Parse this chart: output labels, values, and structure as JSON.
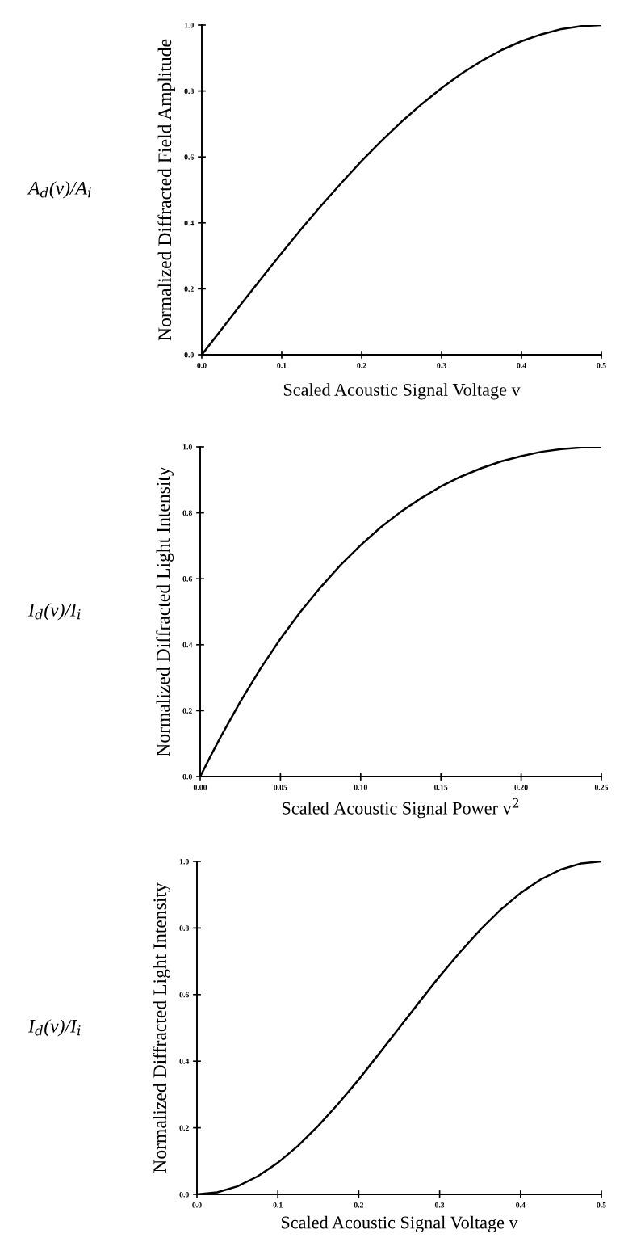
{
  "chart_data": [
    {
      "type": "line",
      "xlabel": "Scaled Acoustic Signal Voltage v",
      "ylabel": "Normalized Diffracted Field Amplitude",
      "annotations": [
        "A$_{d}$(v)/A$_{i}$"
      ],
      "x": [
        0,
        0.025,
        0.05,
        0.075,
        0.1,
        0.125,
        0.15,
        0.175,
        0.2,
        0.225,
        0.25,
        0.275,
        0.3,
        0.325,
        0.35,
        0.375,
        0.4,
        0.425,
        0.45,
        0.475,
        0.5
      ],
      "series": [
        {
          "color": "#000000",
          "values": [
            0,
            0.078,
            0.156,
            0.233,
            0.309,
            0.383,
            0.454,
            0.522,
            0.588,
            0.649,
            0.707,
            0.76,
            0.809,
            0.853,
            0.891,
            0.924,
            0.951,
            0.972,
            0.988,
            0.997,
            1.0
          ]
        }
      ],
      "xlim": [
        0,
        0.5
      ],
      "xticks": [
        {
          "value": 0,
          "label": "0.0"
        },
        {
          "value": 0.1,
          "label": "0.1"
        },
        {
          "value": 0.2,
          "label": "0.2"
        },
        {
          "value": 0.3,
          "label": "0.3"
        },
        {
          "value": 0.4,
          "label": "0.4"
        },
        {
          "value": 0.5,
          "label": "0.5"
        }
      ],
      "ylim": [
        0,
        1
      ],
      "yticks": [
        {
          "value": 0,
          "label": "0.0"
        },
        {
          "value": 0.2,
          "label": "0.2"
        },
        {
          "value": 0.4,
          "label": "0.4"
        },
        {
          "value": 0.6,
          "label": "0.6"
        },
        {
          "value": 0.8,
          "label": "0.8"
        },
        {
          "value": 1,
          "label": "1.0"
        }
      ],
      "grid": false,
      "legend": false,
      "marker": "none",
      "line_style": "solid"
    },
    {
      "type": "line",
      "xlabel": "Scaled Acoustic Signal Power v$^{2}$",
      "ylabel": "Normalized Diffracted Light Intensity",
      "annotations": [
        "I$_{d}$(v)/I$_{i}$"
      ],
      "x": [
        0,
        0.00625,
        0.0125,
        0.025,
        0.0375,
        0.05,
        0.0625,
        0.075,
        0.0875,
        0.1,
        0.1125,
        0.125,
        0.1375,
        0.15,
        0.1625,
        0.175,
        0.1875,
        0.2,
        0.2125,
        0.225,
        0.2375,
        0.25
      ],
      "series": [
        {
          "color": "#000000",
          "values": [
            0,
            0.06,
            0.118,
            0.227,
            0.327,
            0.418,
            0.5,
            0.574,
            0.642,
            0.702,
            0.756,
            0.803,
            0.844,
            0.88,
            0.91,
            0.935,
            0.956,
            0.972,
            0.985,
            0.993,
            0.998,
            1.0
          ]
        }
      ],
      "xlim": [
        0,
        0.25
      ],
      "xticks": [
        {
          "value": 0,
          "label": "0.00"
        },
        {
          "value": 0.05,
          "label": "0.05"
        },
        {
          "value": 0.1,
          "label": "0.10"
        },
        {
          "value": 0.15,
          "label": "0.15"
        },
        {
          "value": 0.2,
          "label": "0.20"
        },
        {
          "value": 0.25,
          "label": "0.25"
        }
      ],
      "ylim": [
        0,
        1
      ],
      "yticks": [
        {
          "value": 0,
          "label": "0.0"
        },
        {
          "value": 0.2,
          "label": "0.2"
        },
        {
          "value": 0.4,
          "label": "0.4"
        },
        {
          "value": 0.6,
          "label": "0.6"
        },
        {
          "value": 0.8,
          "label": "0.8"
        },
        {
          "value": 1,
          "label": "1.0"
        }
      ],
      "grid": false,
      "legend": false,
      "marker": "none",
      "line_style": "solid"
    },
    {
      "type": "line",
      "xlabel": "Scaled Acoustic Signal Voltage v",
      "ylabel": "Normalized Diffracted Light Intensity",
      "annotations": [
        "I$_{d}$(v)/I$_{i}$"
      ],
      "x": [
        0,
        0.025,
        0.05,
        0.075,
        0.1,
        0.125,
        0.15,
        0.175,
        0.2,
        0.225,
        0.25,
        0.275,
        0.3,
        0.325,
        0.35,
        0.375,
        0.4,
        0.425,
        0.45,
        0.475,
        0.5
      ],
      "series": [
        {
          "color": "#000000",
          "values": [
            0,
            0.006,
            0.024,
            0.054,
            0.095,
            0.146,
            0.206,
            0.273,
            0.345,
            0.422,
            0.5,
            0.578,
            0.655,
            0.727,
            0.794,
            0.854,
            0.905,
            0.946,
            0.976,
            0.994,
            1.0
          ]
        }
      ],
      "xlim": [
        0,
        0.5
      ],
      "xticks": [
        {
          "value": 0,
          "label": "0.0"
        },
        {
          "value": 0.1,
          "label": "0.1"
        },
        {
          "value": 0.2,
          "label": "0.2"
        },
        {
          "value": 0.3,
          "label": "0.3"
        },
        {
          "value": 0.4,
          "label": "0.4"
        },
        {
          "value": 0.5,
          "label": "0.5"
        }
      ],
      "ylim": [
        0,
        1
      ],
      "yticks": [
        {
          "value": 0,
          "label": "0.0"
        },
        {
          "value": 0.2,
          "label": "0.2"
        },
        {
          "value": 0.4,
          "label": "0.4"
        },
        {
          "value": 0.6,
          "label": "0.6"
        },
        {
          "value": 0.8,
          "label": "0.8"
        },
        {
          "value": 1,
          "label": "1.0"
        }
      ],
      "grid": false,
      "legend": false,
      "marker": "none",
      "line_style": "solid"
    }
  ]
}
